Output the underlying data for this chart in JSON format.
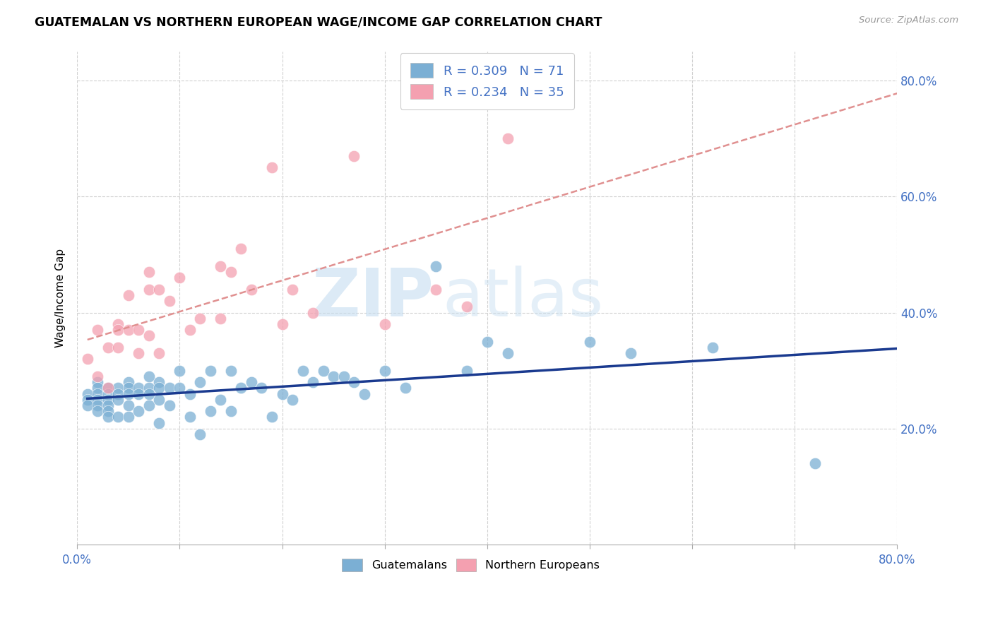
{
  "title": "GUATEMALAN VS NORTHERN EUROPEAN WAGE/INCOME GAP CORRELATION CHART",
  "source": "Source: ZipAtlas.com",
  "ylabel": "Wage/Income Gap",
  "yticks": [
    "20.0%",
    "40.0%",
    "60.0%",
    "80.0%"
  ],
  "ytick_vals": [
    0.2,
    0.4,
    0.6,
    0.8
  ],
  "xlim": [
    0.0,
    0.8
  ],
  "ylim": [
    0.0,
    0.85
  ],
  "color_guatemalan": "#7bafd4",
  "color_northern": "#f4a0b0",
  "color_blue_text": "#4472c4",
  "color_trendline_blue": "#1a3a8f",
  "color_trendline_pink": "#e09090",
  "watermark_zip": "ZIP",
  "watermark_atlas": "atlas",
  "guatemalan_x": [
    0.01,
    0.01,
    0.01,
    0.02,
    0.02,
    0.02,
    0.02,
    0.02,
    0.02,
    0.03,
    0.03,
    0.03,
    0.03,
    0.03,
    0.03,
    0.04,
    0.04,
    0.04,
    0.04,
    0.05,
    0.05,
    0.05,
    0.05,
    0.05,
    0.06,
    0.06,
    0.06,
    0.07,
    0.07,
    0.07,
    0.07,
    0.08,
    0.08,
    0.08,
    0.08,
    0.09,
    0.09,
    0.1,
    0.1,
    0.11,
    0.11,
    0.12,
    0.12,
    0.13,
    0.13,
    0.14,
    0.15,
    0.15,
    0.16,
    0.17,
    0.18,
    0.19,
    0.2,
    0.21,
    0.22,
    0.23,
    0.24,
    0.25,
    0.26,
    0.27,
    0.28,
    0.3,
    0.32,
    0.35,
    0.38,
    0.4,
    0.42,
    0.5,
    0.54,
    0.62,
    0.72
  ],
  "guatemalan_y": [
    0.26,
    0.25,
    0.24,
    0.28,
    0.27,
    0.26,
    0.25,
    0.24,
    0.23,
    0.27,
    0.26,
    0.25,
    0.24,
    0.23,
    0.22,
    0.27,
    0.26,
    0.25,
    0.22,
    0.28,
    0.27,
    0.26,
    0.24,
    0.22,
    0.27,
    0.26,
    0.23,
    0.29,
    0.27,
    0.26,
    0.24,
    0.28,
    0.27,
    0.25,
    0.21,
    0.27,
    0.24,
    0.3,
    0.27,
    0.26,
    0.22,
    0.28,
    0.19,
    0.3,
    0.23,
    0.25,
    0.3,
    0.23,
    0.27,
    0.28,
    0.27,
    0.22,
    0.26,
    0.25,
    0.3,
    0.28,
    0.3,
    0.29,
    0.29,
    0.28,
    0.26,
    0.3,
    0.27,
    0.48,
    0.3,
    0.35,
    0.33,
    0.35,
    0.33,
    0.34,
    0.14
  ],
  "northern_x": [
    0.01,
    0.02,
    0.02,
    0.03,
    0.03,
    0.04,
    0.04,
    0.04,
    0.05,
    0.05,
    0.06,
    0.06,
    0.07,
    0.07,
    0.07,
    0.08,
    0.08,
    0.09,
    0.1,
    0.11,
    0.12,
    0.14,
    0.14,
    0.15,
    0.16,
    0.17,
    0.19,
    0.2,
    0.21,
    0.23,
    0.27,
    0.3,
    0.35,
    0.38,
    0.42
  ],
  "northern_y": [
    0.32,
    0.37,
    0.29,
    0.34,
    0.27,
    0.38,
    0.37,
    0.34,
    0.43,
    0.37,
    0.37,
    0.33,
    0.47,
    0.44,
    0.36,
    0.44,
    0.33,
    0.42,
    0.46,
    0.37,
    0.39,
    0.48,
    0.39,
    0.47,
    0.51,
    0.44,
    0.65,
    0.38,
    0.44,
    0.4,
    0.67,
    0.38,
    0.44,
    0.41,
    0.7
  ]
}
